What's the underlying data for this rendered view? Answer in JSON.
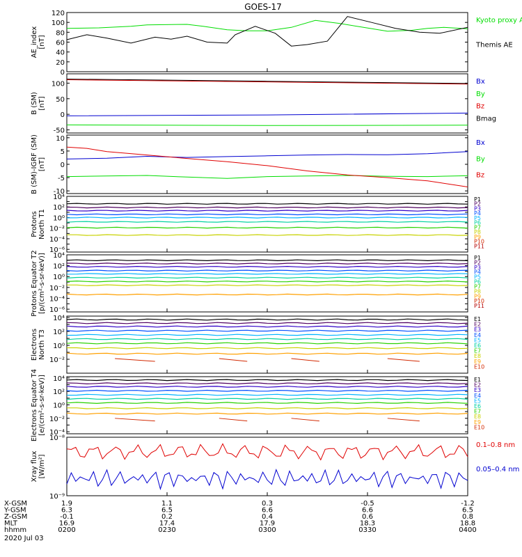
{
  "title": "GOES-17",
  "date_label": "2020 Jul 03",
  "colors": {
    "black": "#000000",
    "blue": "#0000d0",
    "green": "#00dd00",
    "red": "#e00000",
    "P": [
      "#000000",
      "#500060",
      "#3000c8",
      "#0050ff",
      "#00b4ff",
      "#00d2a0",
      "#28d200",
      "#c8d200",
      "#ffa000",
      "#d22800",
      "#b40000"
    ],
    "E": [
      "#000000",
      "#500060",
      "#3000c8",
      "#0050ff",
      "#00b4ff",
      "#00d2a0",
      "#28d200",
      "#c8d200",
      "#ffa000",
      "#d22800"
    ]
  },
  "chart_data": [
    {
      "type": "line",
      "id": "ae",
      "ylabel": "AE_index [nT]",
      "ylim": [
        0,
        120
      ],
      "yticks": [
        "0",
        "20",
        "40",
        "60",
        "80",
        "100",
        "120"
      ],
      "legend": [
        "Kyoto proxy AE",
        "Themis AE"
      ],
      "series": [
        {
          "name": "Kyoto proxy AE",
          "color": "green",
          "x": [
            0,
            0.08,
            0.16,
            0.2,
            0.3,
            0.34,
            0.4,
            0.45,
            0.5,
            0.56,
            0.62,
            0.68,
            0.74,
            0.8,
            0.86,
            0.9,
            0.94,
            1.0
          ],
          "y": [
            88,
            89,
            92,
            95,
            96,
            92,
            85,
            83,
            83,
            90,
            104,
            98,
            90,
            82,
            84,
            88,
            90,
            87
          ]
        },
        {
          "name": "Themis AE",
          "color": "black",
          "x": [
            0,
            0.05,
            0.1,
            0.16,
            0.22,
            0.26,
            0.3,
            0.35,
            0.4,
            0.42,
            0.47,
            0.52,
            0.56,
            0.6,
            0.65,
            0.7,
            0.76,
            0.82,
            0.88,
            0.93,
            1.0
          ],
          "y": [
            65,
            75,
            68,
            58,
            70,
            66,
            72,
            60,
            58,
            75,
            92,
            78,
            52,
            55,
            62,
            112,
            100,
            88,
            80,
            78,
            90
          ]
        }
      ]
    },
    {
      "type": "line",
      "id": "bsm",
      "ylabel": "B (SM) [nT]",
      "ylim": [
        -60,
        130
      ],
      "yticks": [
        "-50",
        "0",
        "50",
        "100"
      ],
      "legend": [
        "Bx",
        "By",
        "Bz",
        "Bmag"
      ],
      "series": [
        {
          "name": "Bx",
          "color": "blue",
          "x": [
            0,
            0.5,
            1
          ],
          "y": [
            -5,
            -2,
            4
          ]
        },
        {
          "name": "By",
          "color": "green",
          "x": [
            0,
            0.5,
            1
          ],
          "y": [
            -34,
            -36,
            -35
          ]
        },
        {
          "name": "Bz",
          "color": "red",
          "x": [
            0,
            0.5,
            1
          ],
          "y": [
            111,
            104,
            97
          ]
        },
        {
          "name": "Bmag",
          "color": "black",
          "x": [
            0,
            0.5,
            1
          ],
          "y": [
            113,
            106,
            99
          ]
        }
      ]
    },
    {
      "type": "line",
      "id": "bigrf",
      "ylabel": "B (SM)-IGRF (SM) [nT]",
      "ylim": [
        -11,
        11
      ],
      "yticks": [
        "-10",
        "-5",
        "0",
        "5",
        "10"
      ],
      "legend": [
        "Bx",
        "By",
        "Bz"
      ],
      "series": [
        {
          "name": "Bx",
          "color": "blue",
          "x": [
            0,
            0.1,
            0.2,
            0.3,
            0.4,
            0.5,
            0.6,
            0.7,
            0.8,
            0.9,
            1.0
          ],
          "y": [
            2.0,
            2.3,
            3.0,
            2.6,
            2.9,
            3.2,
            3.5,
            3.7,
            3.6,
            4.0,
            4.8
          ]
        },
        {
          "name": "By",
          "color": "green",
          "x": [
            0,
            0.1,
            0.2,
            0.3,
            0.4,
            0.5,
            0.6,
            0.7,
            0.8,
            0.9,
            1.0
          ],
          "y": [
            -4.6,
            -4.4,
            -4.2,
            -4.8,
            -5.3,
            -4.6,
            -4.4,
            -4.2,
            -4.5,
            -4.6,
            -4.3
          ]
        },
        {
          "name": "Bz",
          "color": "red",
          "x": [
            0,
            0.05,
            0.1,
            0.2,
            0.3,
            0.4,
            0.5,
            0.6,
            0.7,
            0.8,
            0.9,
            1.0
          ],
          "y": [
            6.5,
            6.0,
            4.8,
            3.5,
            2.2,
            1.0,
            -0.5,
            -2.5,
            -4.0,
            -5.0,
            -6.2,
            -8.5
          ]
        }
      ]
    },
    {
      "type": "line",
      "id": "protons_t1",
      "ylabel": "Protons North T1",
      "scale": "log",
      "ylim": [
        -6.5,
        4
      ],
      "ytick_labels": [
        "10⁴",
        "10²",
        "10⁰",
        "10⁻²",
        "10⁻⁴",
        "10⁻⁶"
      ],
      "legend": [
        "P1",
        "P2",
        "P3",
        "P4",
        "P5",
        "P6",
        "P7",
        "P8",
        "P9",
        "P10",
        "P11"
      ],
      "levels": [
        2.6,
        1.9,
        1.3,
        0.6,
        0.0,
        -0.8,
        -1.9,
        -3.3
      ]
    },
    {
      "type": "line",
      "id": "protons_t2",
      "ylabel": "Protons Equator T2 [p/(cm²-s-sr-keV)]",
      "scale": "log",
      "ylim": [
        -6.5,
        4
      ],
      "ytick_labels": [
        "10⁴",
        "10²",
        "10⁰",
        "10⁻²",
        "10⁻⁴",
        "10⁻⁶"
      ],
      "legend": [
        "P1",
        "P2",
        "P3",
        "P4",
        "P5",
        "P6",
        "P7",
        "P8",
        "P9",
        "P10",
        "P11"
      ],
      "levels": [
        3.0,
        2.4,
        1.8,
        1.1,
        0.5,
        -0.2,
        -0.9,
        -1.6,
        -3.3
      ]
    },
    {
      "type": "line",
      "id": "electrons_t3",
      "ylabel": "Electrons North T3",
      "scale": "log",
      "ylim": [
        -4,
        4.2
      ],
      "ytick_labels": [
        "10⁴",
        "10²",
        "10⁰",
        "10⁻²"
      ],
      "legend": [
        "E1",
        "E2",
        "E3",
        "E4",
        "E5",
        "E6",
        "E7",
        "E8",
        "E9",
        "E10"
      ],
      "levels": [
        3.7,
        3.2,
        2.7,
        2.1,
        1.5,
        0.9,
        0.3,
        -0.4,
        -1.2
      ]
    },
    {
      "type": "line",
      "id": "electrons_t4",
      "ylabel": "Electrons Equator T4 [e/(cm²-s-sr-keV)]",
      "scale": "log",
      "ylim": [
        -4.3,
        4.2
      ],
      "ytick_labels": [
        "10⁴",
        "10²",
        "10⁰",
        "10⁻²",
        "10⁻⁴"
      ],
      "legend": [
        "E1",
        "E2",
        "E3",
        "E4",
        "E5",
        "E6",
        "E7",
        "E8",
        "E9",
        "E10"
      ],
      "levels": [
        3.7,
        3.2,
        2.7,
        2.1,
        1.5,
        0.9,
        0.3,
        -0.5,
        -1.3
      ]
    },
    {
      "type": "line",
      "id": "xray",
      "ylabel": "Xray flux [W/m²]",
      "scale": "log",
      "ylim": [
        -9,
        -8
      ],
      "ytick_labels": [
        "10⁻⁸",
        "10⁻⁹"
      ],
      "legend": [
        "0.1–0.8 nm",
        "0.05–0.4 nm"
      ]
    }
  ],
  "x_axis": {
    "row_labels": [
      "X-GSM",
      "Y-GSM",
      "Z-GSM",
      "MLT",
      "hhmm"
    ],
    "columns": [
      {
        "x-gsm": "1.9",
        "y-gsm": "6.3",
        "z-gsm": "-0.1",
        "mlt": "16.9",
        "hhmm": "0200"
      },
      {
        "x-gsm": "1.1",
        "y-gsm": "6.5",
        "z-gsm": "0.2",
        "mlt": "17.4",
        "hhmm": "0230"
      },
      {
        "x-gsm": "0.3",
        "y-gsm": "6.6",
        "z-gsm": "0.4",
        "mlt": "17.9",
        "hhmm": "0300"
      },
      {
        "x-gsm": "-0.5",
        "y-gsm": "6.6",
        "z-gsm": "0.6",
        "mlt": "18.3",
        "hhmm": "0330"
      },
      {
        "x-gsm": "-1.2",
        "y-gsm": "6.5",
        "z-gsm": "0.8",
        "mlt": "18.8",
        "hhmm": "0400"
      }
    ]
  }
}
